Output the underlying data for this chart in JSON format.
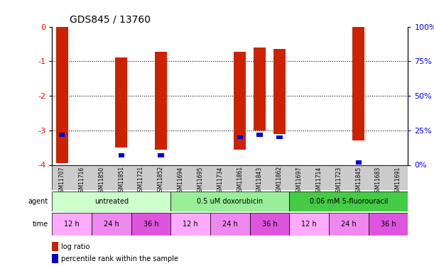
{
  "title": "GDS845 / 13760",
  "samples": [
    "GSM11707",
    "GSM11716",
    "GSM11850",
    "GSM11851",
    "GSM11721",
    "GSM11852",
    "GSM11694",
    "GSM11695",
    "GSM11734",
    "GSM11861",
    "GSM11843",
    "GSM11862",
    "GSM11697",
    "GSM11714",
    "GSM11723",
    "GSM11845",
    "GSM11683",
    "GSM11691"
  ],
  "log_ratios": [
    -3.95,
    0,
    0,
    -3.5,
    0,
    -3.55,
    0,
    0,
    0,
    -3.55,
    -3.0,
    -3.1,
    0,
    0,
    0,
    -3.3,
    0,
    0
  ],
  "bar_tops": [
    0,
    0,
    0,
    -0.9,
    0,
    -0.72,
    0,
    0,
    0,
    -0.72,
    -0.6,
    -0.65,
    0,
    0,
    0,
    0,
    0,
    0
  ],
  "percentile_ranks": [
    22,
    null,
    null,
    7,
    null,
    7,
    null,
    null,
    null,
    20,
    22,
    20,
    null,
    null,
    null,
    2,
    null,
    null
  ],
  "agents": [
    "untreated",
    "untreated",
    "untreated",
    "untreated",
    "untreated",
    "untreated",
    "0.5 uM doxorubicin",
    "0.5 uM doxorubicin",
    "0.5 uM doxorubicin",
    "0.5 uM doxorubicin",
    "0.5 uM doxorubicin",
    "0.5 uM doxorubicin",
    "0.06 mM 5-fluorouracil",
    "0.06 mM 5-fluorouracil",
    "0.06 mM 5-fluorouracil",
    "0.06 mM 5-fluorouracil",
    "0.06 mM 5-fluorouracil",
    "0.06 mM 5-fluorouracil"
  ],
  "times": [
    "12 h",
    "24 h",
    "36 h",
    "12 h",
    "24 h",
    "36 h",
    "12 h",
    "24 h",
    "36 h",
    "12 h",
    "24 h",
    "36 h",
    "12 h",
    "24 h",
    "36 h",
    "12 h",
    "24 h",
    "36 h"
  ],
  "agent_groups": [
    {
      "label": "untreated",
      "start": 0,
      "end": 5,
      "color": "#ccffcc"
    },
    {
      "label": "0.5 uM doxorubicin",
      "start": 6,
      "end": 11,
      "color": "#99ee99"
    },
    {
      "label": "0.06 mM 5-fluorouracil",
      "start": 12,
      "end": 17,
      "color": "#44cc44"
    }
  ],
  "time_colors": [
    "#ffaaff",
    "#ee88ee",
    "#dd66dd"
  ],
  "ylim": [
    -4,
    0
  ],
  "y2lim": [
    0,
    100
  ],
  "yticks": [
    0,
    -1,
    -2,
    -3,
    -4
  ],
  "ytick_labels": [
    "0",
    "-1",
    "-2",
    "-3",
    "-4"
  ],
  "y2ticks": [
    0,
    25,
    50,
    75,
    100
  ],
  "y2tick_labels": [
    "0%",
    "25%",
    "50%",
    "75%",
    "100%"
  ],
  "bar_color": "#cc2200",
  "blue_color": "#0000cc",
  "grid_color": "#000000",
  "bg_color": "#ffffff",
  "tick_area_color": "#cccccc"
}
